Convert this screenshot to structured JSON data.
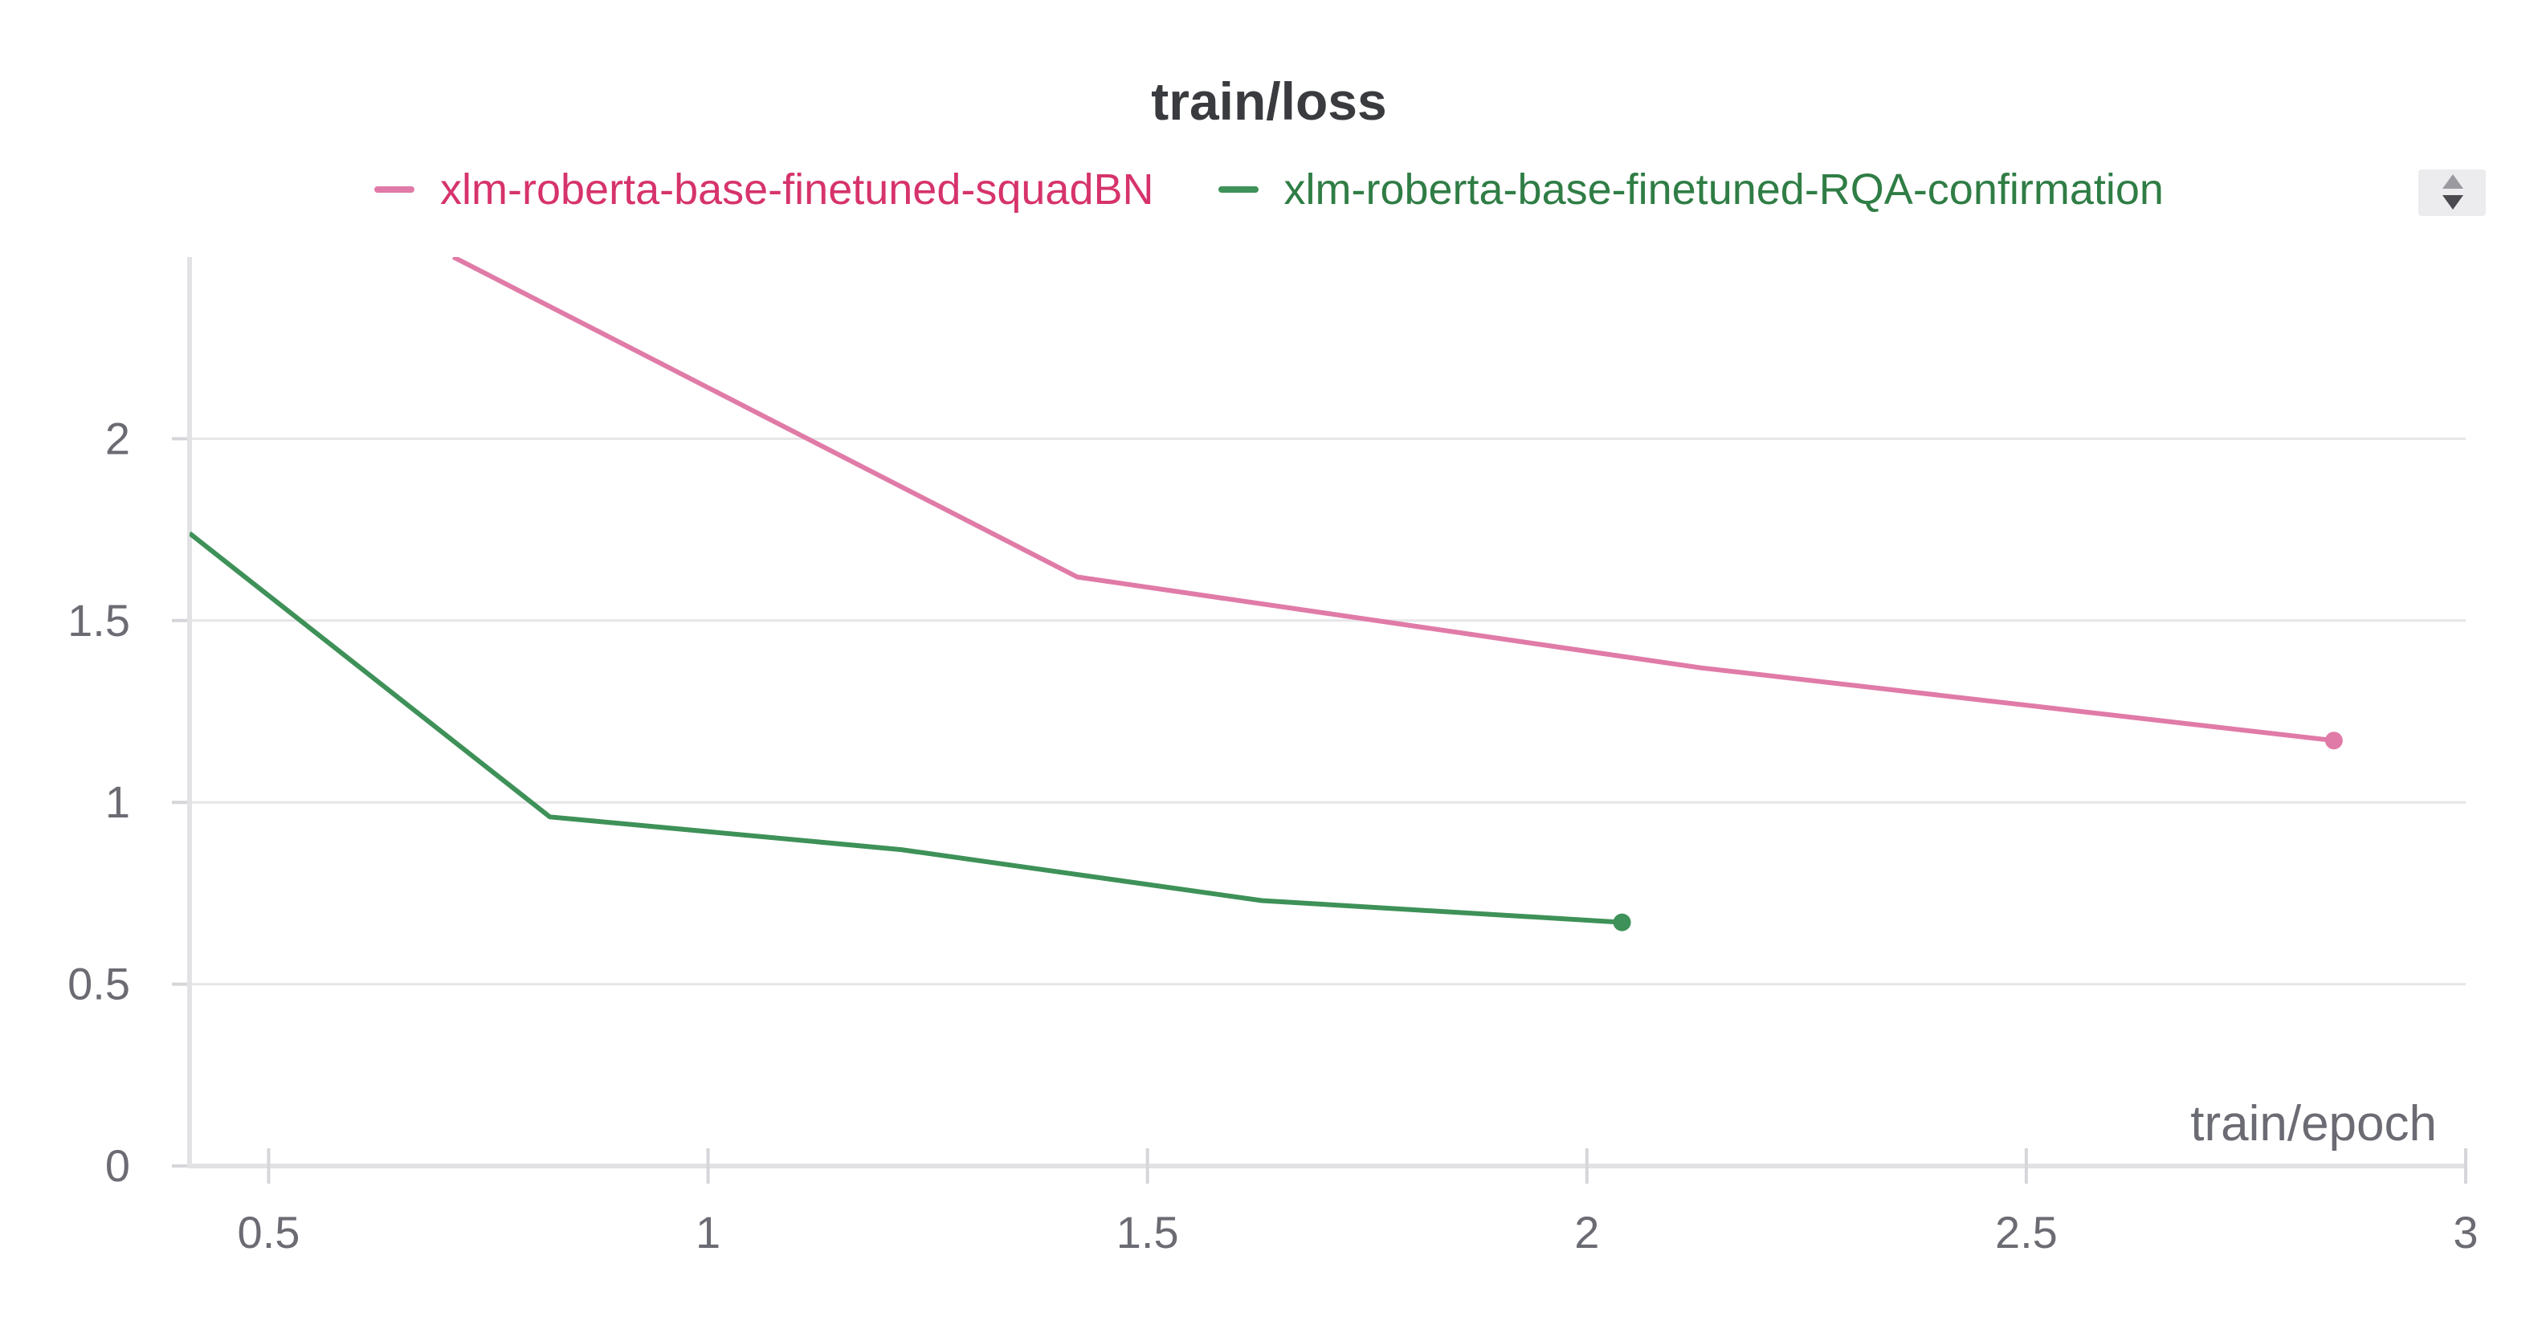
{
  "chart_data": {
    "type": "line",
    "title": "train/loss",
    "xlabel": "train/epoch",
    "ylabel": "",
    "xlim": [
      0.41,
      3.0
    ],
    "ylim": [
      0,
      2.5
    ],
    "x_ticks": [
      "0.5",
      "1",
      "1.5",
      "2",
      "2.5",
      "3"
    ],
    "y_ticks": [
      "0",
      "0.5",
      "1",
      "1.5",
      "2"
    ],
    "grid": "horizontal",
    "legend_position": "top-center",
    "series": [
      {
        "name": "xlm-roberta-base-finetuned-squadBN",
        "color": "#e07ba7",
        "text_color": "#d6336c",
        "x": [
          0.71,
          1.42,
          2.13,
          2.85
        ],
        "y": [
          2.5,
          1.62,
          1.37,
          1.17
        ]
      },
      {
        "name": "xlm-roberta-base-finetuned-RQA-confirmation",
        "color": "#3e9158",
        "text_color": "#2f7d45",
        "x": [
          0.41,
          0.82,
          1.22,
          1.63,
          2.04
        ],
        "y": [
          1.74,
          0.96,
          0.87,
          0.73,
          0.67
        ]
      }
    ]
  }
}
